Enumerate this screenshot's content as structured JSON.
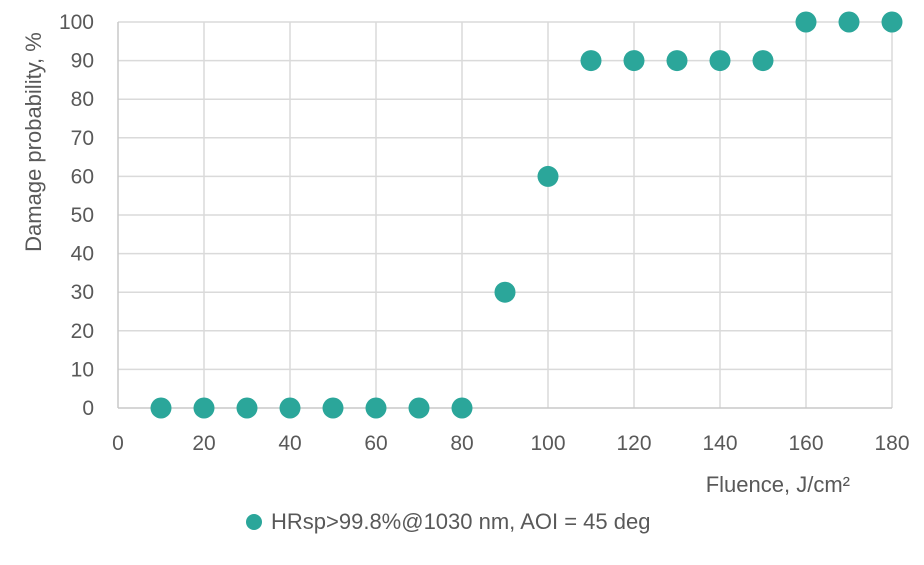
{
  "chart_data": {
    "type": "scatter",
    "title": "",
    "xlabel": "Fluence, J/cm²",
    "ylabel": "Damage probability, %",
    "xlim": [
      0,
      180
    ],
    "ylim": [
      0,
      100
    ],
    "x_ticks": [
      0,
      20,
      40,
      60,
      80,
      100,
      120,
      140,
      160,
      180
    ],
    "y_ticks": [
      0,
      10,
      20,
      30,
      40,
      50,
      60,
      70,
      80,
      90,
      100
    ],
    "grid": true,
    "legend_position": "bottom-center",
    "series": [
      {
        "name": "HRsp>99.8%@1030 nm, AOI = 45 deg",
        "marker": "circle",
        "color": "#2BA69A",
        "x": [
          10,
          20,
          30,
          40,
          50,
          60,
          70,
          80,
          90,
          100,
          110,
          120,
          130,
          140,
          150,
          160,
          170,
          180
        ],
        "y": [
          0,
          0,
          0,
          0,
          0,
          0,
          0,
          0,
          30,
          60,
          90,
          90,
          90,
          90,
          90,
          100,
          100,
          100
        ]
      }
    ]
  },
  "axes": {
    "x_title": "Fluence, J/cm²",
    "y_title": "Damage probability, %"
  },
  "legend": {
    "label": "HRsp>99.8%@1030 nm, AOI = 45 deg"
  },
  "colors": {
    "marker": "#2BA69A",
    "text": "#595959",
    "gridline": "#DADADA",
    "axis_line": "#C8C8C8",
    "background": "#FFFFFF"
  }
}
